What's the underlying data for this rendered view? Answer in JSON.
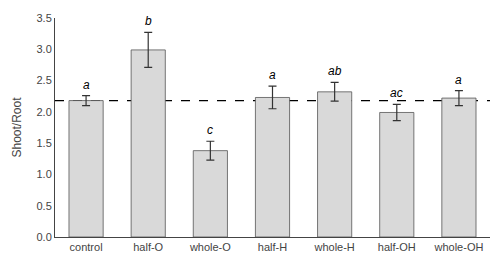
{
  "chart_data": {
    "type": "bar",
    "categories": [
      "control",
      "half-O",
      "whole-O",
      "half-H",
      "whole-H",
      "half-OH",
      "whole-OH"
    ],
    "values": [
      2.18,
      2.99,
      1.38,
      2.23,
      2.32,
      1.99,
      2.22
    ],
    "errors": [
      0.08,
      0.28,
      0.15,
      0.18,
      0.15,
      0.13,
      0.12
    ],
    "annotations": [
      "a",
      "b",
      "c",
      "a",
      "ab",
      "ac",
      "a"
    ],
    "dashed_line": 2.18,
    "color": "#d9d9d9",
    "ylabel": "Shoot/Root",
    "ylim": [
      0.0,
      3.5
    ],
    "yticks": [
      {
        "value": 0,
        "label": "0.0"
      },
      0.5,
      {
        "value": 1,
        "label": "1.0"
      },
      1.5,
      {
        "value": 2,
        "label": "2.0"
      },
      2.5,
      {
        "value": 3,
        "label": "3.0"
      },
      3.5
    ],
    "grid": false
  }
}
